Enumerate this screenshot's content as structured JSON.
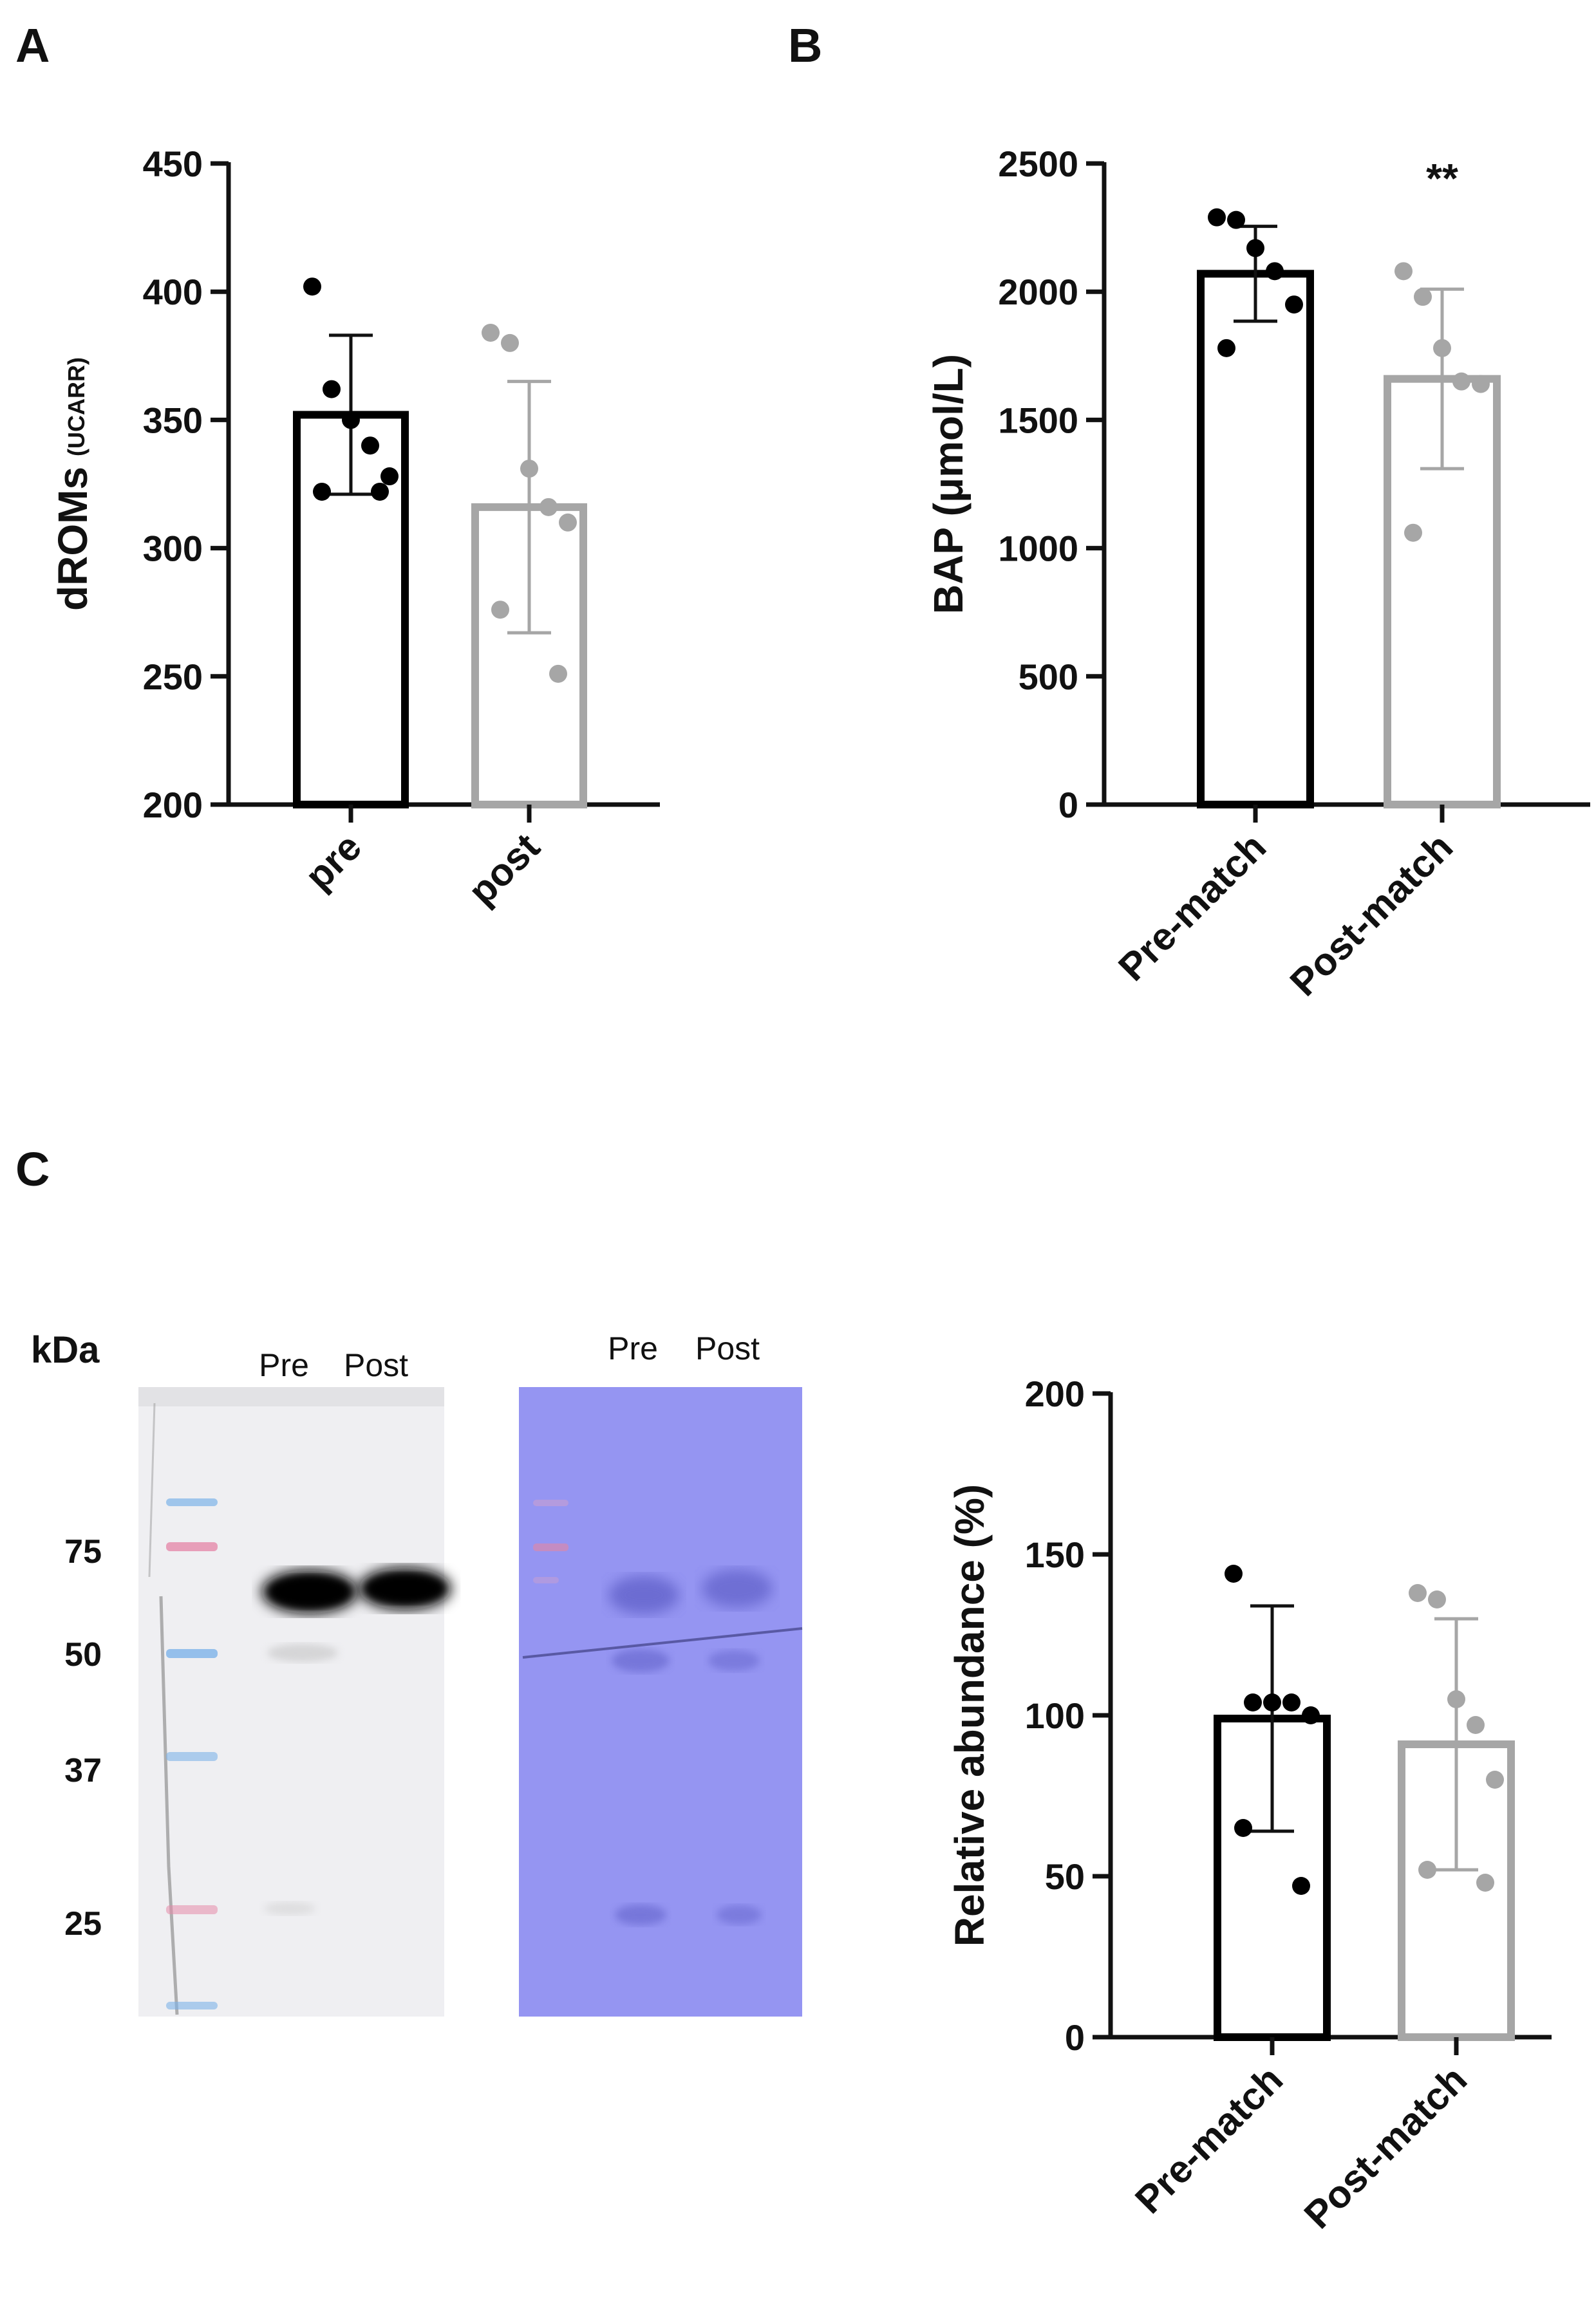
{
  "panels": {
    "A": {
      "letter": "A"
    },
    "B": {
      "letter": "B"
    },
    "C": {
      "letter": "C"
    }
  },
  "colors": {
    "pre": "#000000",
    "post": "#a6a6a6",
    "membrane_blue": "#8f8ff0",
    "ladder_pink": "#e58aaa",
    "ladder_blue": "#7db3e8"
  },
  "blot": {
    "kda_label": "kDa",
    "markers": [
      "75",
      "50",
      "37",
      "25"
    ],
    "left_lanes": [
      "Pre",
      "Post"
    ],
    "right_lanes": [
      "Pre",
      "Post"
    ]
  },
  "chart_data": [
    {
      "id": "A",
      "type": "bar",
      "ylabel": "dROMs",
      "ylabel_unit": "(UCARR)",
      "ylim": [
        200,
        450
      ],
      "yticks": [
        200,
        250,
        300,
        350,
        400,
        450
      ],
      "categories": [
        "pre",
        "post"
      ],
      "values": [
        352,
        316
      ],
      "sd": [
        31,
        49
      ],
      "points": [
        [
          402,
          362,
          350,
          340,
          328,
          322,
          322
        ],
        [
          384,
          380,
          331,
          316,
          310,
          276,
          251
        ]
      ],
      "annotation": ""
    },
    {
      "id": "B",
      "type": "bar",
      "ylabel": "BAP (μmol/L)",
      "ylim": [
        0,
        2500
      ],
      "yticks": [
        0,
        500,
        1000,
        1500,
        2000,
        2500
      ],
      "categories": [
        "Pre-match",
        "Post-match"
      ],
      "values": [
        2070,
        1660
      ],
      "sd": [
        185,
        350
      ],
      "points": [
        [
          2290,
          2280,
          2170,
          2080,
          1950,
          1780
        ],
        [
          2080,
          1980,
          1780,
          1650,
          1640,
          1060
        ]
      ],
      "annotation": "**"
    },
    {
      "id": "C",
      "type": "bar",
      "ylabel": "Relative abundance (%)",
      "ylim": [
        0,
        200
      ],
      "yticks": [
        0,
        50,
        100,
        150,
        200
      ],
      "categories": [
        "Pre-match",
        "Post-match"
      ],
      "values": [
        99,
        91
      ],
      "sd": [
        35,
        39
      ],
      "points": [
        [
          144,
          104,
          104,
          104,
          100,
          65,
          47
        ],
        [
          138,
          136,
          105,
          97,
          80,
          52,
          48
        ]
      ],
      "annotation": ""
    }
  ]
}
